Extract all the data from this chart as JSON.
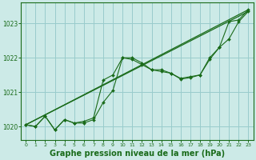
{
  "bg_color": "#cceae7",
  "grid_color": "#99cccc",
  "line_color": "#1a6b1a",
  "xlabel": "Graphe pression niveau de la mer (hPa)",
  "xlabel_fontsize": 7,
  "ylim": [
    1019.6,
    1023.6
  ],
  "xlim": [
    -0.5,
    23.5
  ],
  "yticks": [
    1020,
    1021,
    1022,
    1023
  ],
  "xticks": [
    0,
    1,
    2,
    3,
    4,
    5,
    6,
    7,
    8,
    9,
    10,
    11,
    12,
    13,
    14,
    15,
    16,
    17,
    18,
    19,
    20,
    21,
    22,
    23
  ],
  "series1": [
    1020.05,
    1020.0,
    1020.3,
    1019.9,
    1020.2,
    1020.1,
    1020.1,
    1020.2,
    1020.7,
    1021.05,
    1022.0,
    1022.0,
    1021.85,
    1021.65,
    1021.65,
    1021.55,
    1021.4,
    1021.45,
    1021.5,
    1022.0,
    1022.3,
    1023.05,
    1023.1,
    1023.4
  ],
  "series2": [
    1020.05,
    1020.0,
    1020.3,
    1019.9,
    1020.2,
    1020.1,
    1020.15,
    1020.25,
    1021.35,
    1021.5,
    1022.0,
    1021.95,
    1021.8,
    1021.65,
    1021.6,
    1021.55,
    1021.38,
    1021.42,
    1021.5,
    1021.95,
    1022.3,
    1022.55,
    1023.05,
    1023.35
  ],
  "series3_x": [
    0,
    23
  ],
  "series3_y": [
    1020.05,
    1023.4
  ],
  "series4_x": [
    0,
    23
  ],
  "series4_y": [
    1020.05,
    1023.35
  ]
}
